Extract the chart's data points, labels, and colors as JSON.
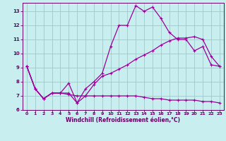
{
  "background_color": "#c8eef0",
  "line_color": "#990099",
  "grid_color": "#a0c8c8",
  "xlabel": "Windchill (Refroidissement éolien,°C)",
  "xlabel_color": "#660066",
  "tick_color": "#660066",
  "xlim": [
    -0.5,
    23.5
  ],
  "ylim": [
    6.0,
    13.6
  ],
  "yticks": [
    6,
    7,
    8,
    9,
    10,
    11,
    12,
    13
  ],
  "xticks": [
    0,
    1,
    2,
    3,
    4,
    5,
    6,
    7,
    8,
    9,
    10,
    11,
    12,
    13,
    14,
    15,
    16,
    17,
    18,
    19,
    20,
    21,
    22,
    23
  ],
  "curve1_x": [
    0,
    1,
    2,
    3,
    4,
    5,
    6,
    7,
    8,
    9,
    10,
    11,
    12,
    13,
    14,
    15,
    16,
    17,
    18,
    19,
    20,
    21,
    22,
    23
  ],
  "curve1_y": [
    9.1,
    7.5,
    6.8,
    7.2,
    7.2,
    7.9,
    6.5,
    7.5,
    8.0,
    8.6,
    10.5,
    12.0,
    12.0,
    13.4,
    13.0,
    13.3,
    12.5,
    11.5,
    11.0,
    11.0,
    10.2,
    10.5,
    9.2,
    9.1
  ],
  "curve2_x": [
    0,
    1,
    2,
    3,
    4,
    5,
    6,
    7,
    8,
    9,
    10,
    11,
    12,
    13,
    14,
    15,
    16,
    17,
    18,
    19,
    20,
    21,
    22,
    23
  ],
  "curve2_y": [
    9.1,
    7.5,
    6.8,
    7.2,
    7.2,
    7.2,
    6.5,
    7.0,
    7.8,
    8.4,
    8.6,
    8.9,
    9.2,
    9.6,
    9.9,
    10.2,
    10.6,
    10.9,
    11.1,
    11.1,
    11.2,
    11.0,
    9.8,
    9.1
  ],
  "curve3_x": [
    0,
    1,
    2,
    3,
    4,
    5,
    6,
    7,
    8,
    9,
    10,
    11,
    12,
    13,
    14,
    15,
    16,
    17,
    18,
    19,
    20,
    21,
    22,
    23
  ],
  "curve3_y": [
    9.1,
    7.5,
    6.8,
    7.2,
    7.2,
    7.1,
    7.0,
    7.0,
    7.0,
    7.0,
    7.0,
    7.0,
    7.0,
    7.0,
    6.9,
    6.8,
    6.8,
    6.7,
    6.7,
    6.7,
    6.7,
    6.6,
    6.6,
    6.5
  ],
  "marker": "+",
  "markersize": 3,
  "linewidth": 0.9
}
